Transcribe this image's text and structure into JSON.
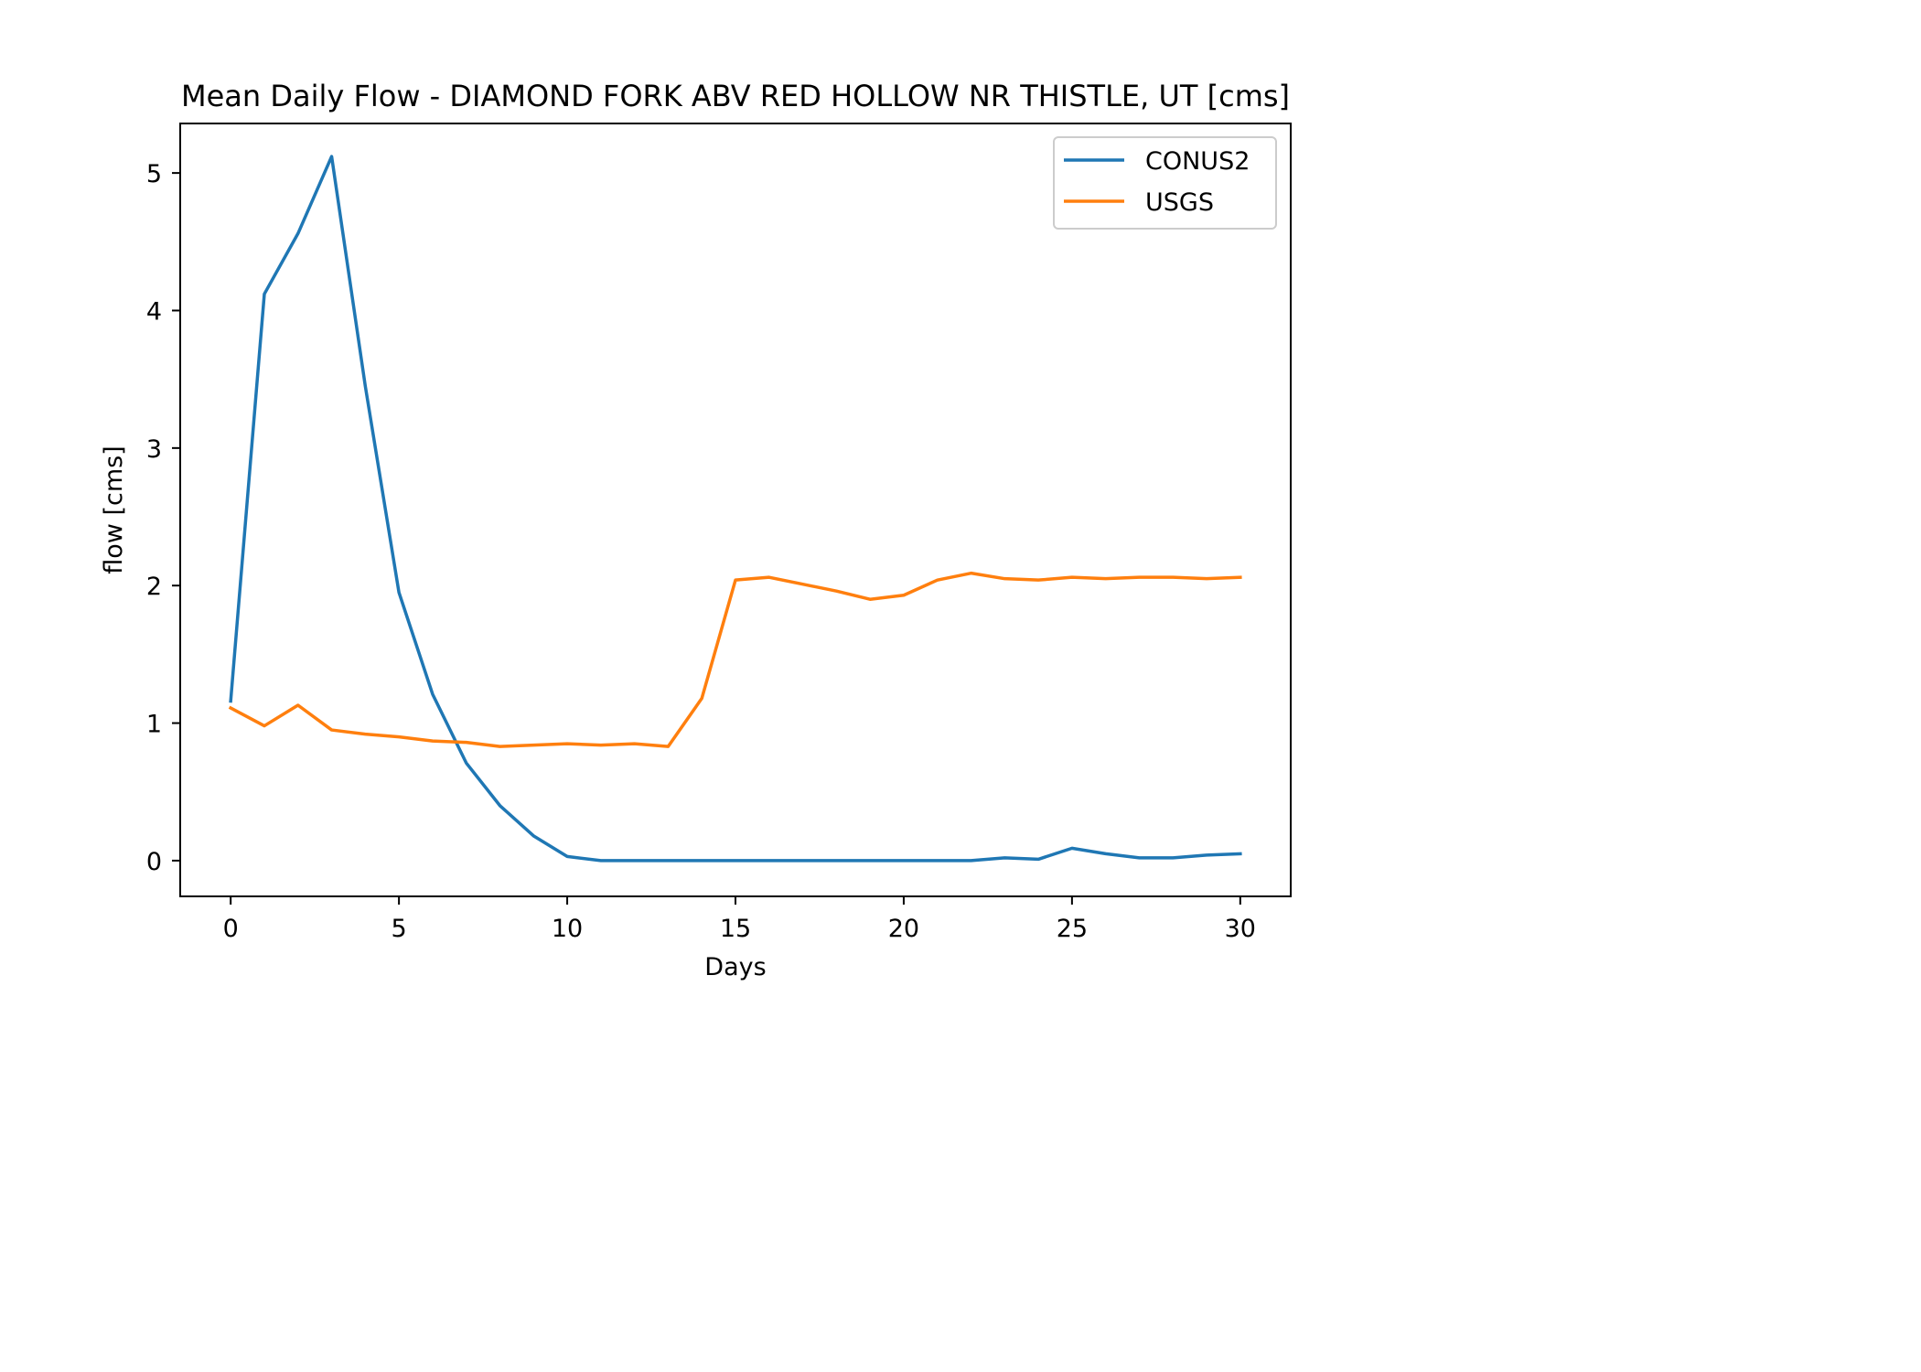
{
  "chart_data": {
    "type": "line",
    "title": "Mean Daily Flow - DIAMOND FORK ABV RED HOLLOW NR THISTLE, UT [cms]",
    "xlabel": "Days",
    "ylabel": "flow [cms]",
    "xlim": [
      -1.5,
      31.5
    ],
    "ylim": [
      -0.26,
      5.36
    ],
    "xticks": [
      0,
      5,
      10,
      15,
      20,
      25,
      30
    ],
    "yticks": [
      0,
      1,
      2,
      3,
      4,
      5
    ],
    "grid": false,
    "legend_position": "top-right",
    "x": [
      0,
      1,
      2,
      3,
      4,
      5,
      6,
      7,
      8,
      9,
      10,
      11,
      12,
      13,
      14,
      15,
      16,
      17,
      18,
      19,
      20,
      21,
      22,
      23,
      24,
      25,
      26,
      27,
      28,
      29,
      30
    ],
    "series": [
      {
        "name": "CONUS2",
        "color": "#1f77b4",
        "values": [
          1.16,
          4.12,
          4.56,
          5.12,
          3.45,
          1.95,
          1.21,
          0.71,
          0.4,
          0.18,
          0.03,
          0.0,
          0.0,
          0.0,
          0.0,
          0.0,
          0.0,
          0.0,
          0.0,
          0.0,
          0.0,
          0.0,
          0.0,
          0.02,
          0.01,
          0.09,
          0.05,
          0.02,
          0.02,
          0.04,
          0.05
        ]
      },
      {
        "name": "USGS",
        "color": "#ff7f0e",
        "values": [
          1.11,
          0.98,
          1.13,
          0.95,
          0.92,
          0.9,
          0.87,
          0.86,
          0.83,
          0.84,
          0.85,
          0.84,
          0.85,
          0.83,
          1.18,
          2.04,
          2.06,
          2.01,
          1.96,
          1.9,
          1.93,
          2.04,
          2.09,
          2.05,
          2.04,
          2.06,
          2.05,
          2.06,
          2.06,
          2.05,
          2.06
        ]
      }
    ]
  }
}
